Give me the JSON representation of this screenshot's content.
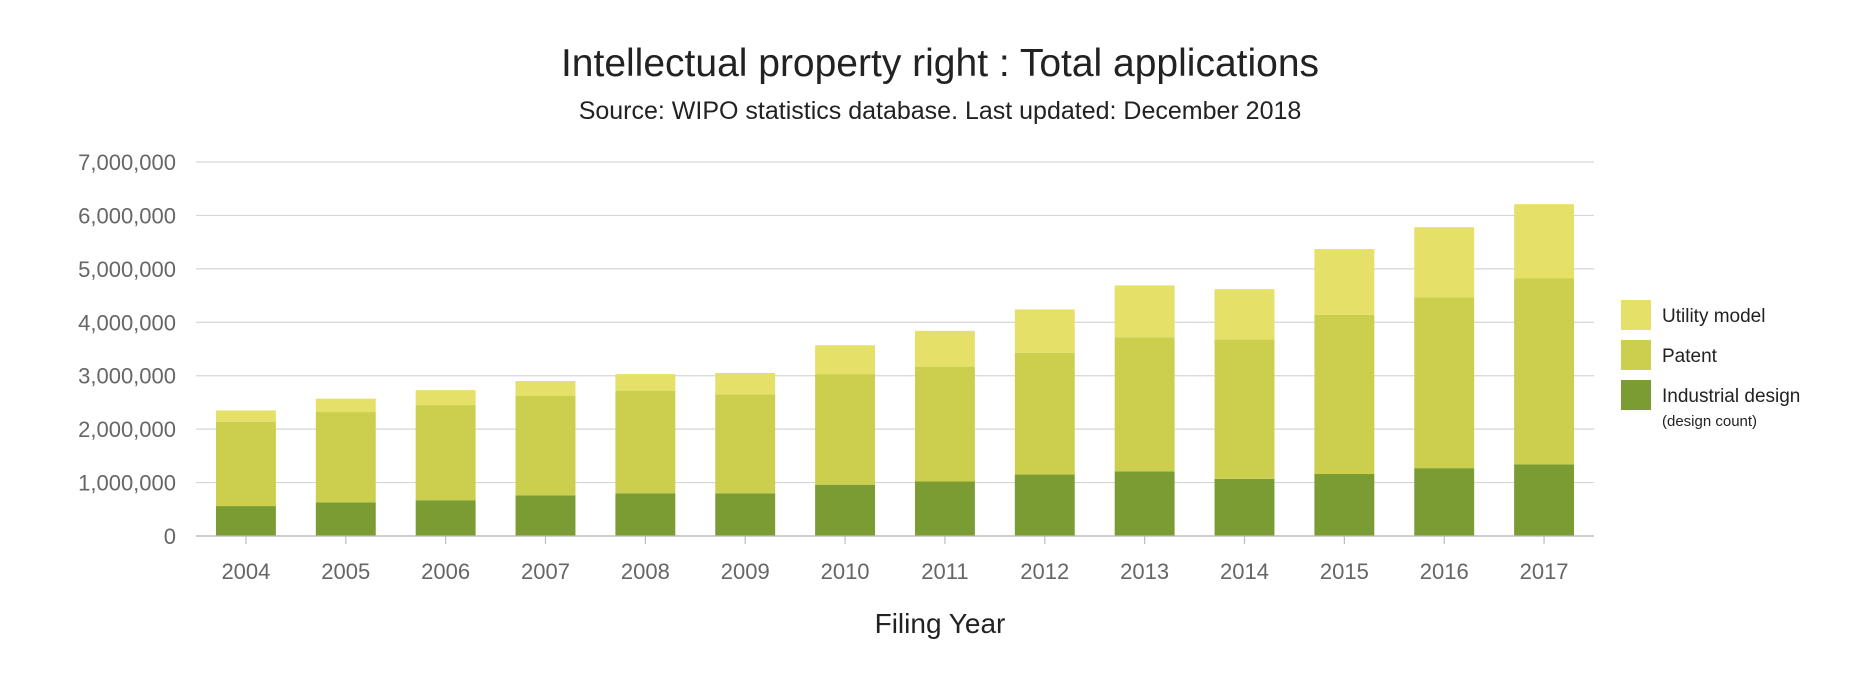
{
  "chart_data": {
    "type": "bar",
    "stacked": true,
    "title": "Intellectual property right : Total applications",
    "subtitle": "Source: WIPO statistics database. Last updated: December 2018",
    "xlabel": "Filing Year",
    "ylabel": "",
    "ylim": [
      0,
      7000000
    ],
    "yticks": [
      "0",
      "1,000,000",
      "2,000,000",
      "3,000,000",
      "4,000,000",
      "5,000,000",
      "6,000,000",
      "7,000,000"
    ],
    "grid": true,
    "legend_position": "right",
    "categories": [
      "2004",
      "2005",
      "2006",
      "2007",
      "2008",
      "2009",
      "2010",
      "2011",
      "2012",
      "2013",
      "2014",
      "2015",
      "2016",
      "2017"
    ],
    "series": [
      {
        "name": "Industrial design",
        "note": "(design count)",
        "color": "#7a9c32",
        "values": [
          560000,
          630000,
          670000,
          760000,
          800000,
          800000,
          960000,
          1020000,
          1150000,
          1210000,
          1070000,
          1160000,
          1270000,
          1340000
        ]
      },
      {
        "name": "Patent",
        "color": "#cccf4e",
        "values": [
          1580000,
          1690000,
          1780000,
          1860000,
          1920000,
          1850000,
          2070000,
          2150000,
          2280000,
          2510000,
          2610000,
          2980000,
          3200000,
          3480000
        ]
      },
      {
        "name": "Utility model",
        "color": "#e4e068",
        "values": [
          210000,
          250000,
          280000,
          280000,
          310000,
          400000,
          540000,
          670000,
          810000,
          970000,
          940000,
          1230000,
          1310000,
          1390000
        ]
      }
    ]
  }
}
